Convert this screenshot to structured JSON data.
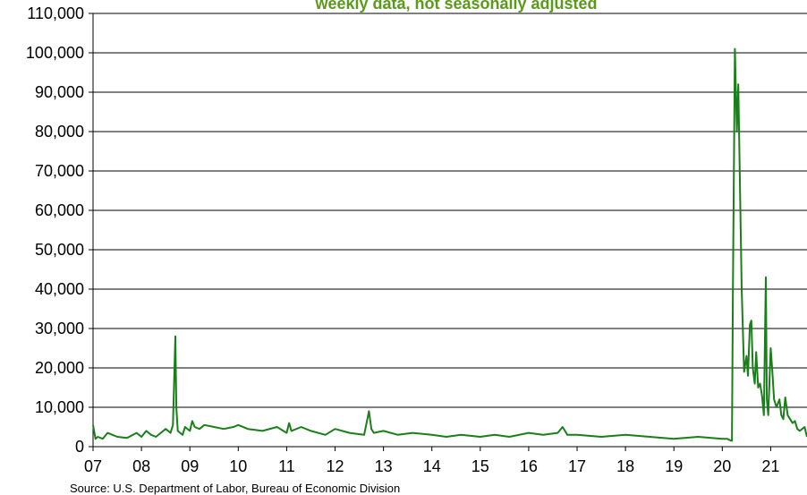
{
  "subtitle": "weekly data, not seasonally adjusted",
  "source": "Source: U.S. Department of Labor, Bureau of Economic Division",
  "colors": {
    "line": "#1a7f1a",
    "subtitle": "#5a9a1a",
    "grid": "#000000",
    "axis": "#000000"
  },
  "chart_data": {
    "type": "line",
    "title": "",
    "subtitle": "weekly data, not seasonally adjusted",
    "xlabel": "",
    "ylabel": "",
    "ylim": [
      0,
      110000
    ],
    "xlim": [
      2007.0,
      2021.75
    ],
    "yticks": [
      0,
      10000,
      20000,
      30000,
      40000,
      50000,
      60000,
      70000,
      80000,
      90000,
      100000,
      110000
    ],
    "ytick_labels": [
      "0",
      "10,000",
      "20,000",
      "30,000",
      "40,000",
      "50,000",
      "60,000",
      "70,000",
      "80,000",
      "90,000",
      "100,000",
      "110,000"
    ],
    "xticks": [
      2007,
      2008,
      2009,
      2010,
      2011,
      2012,
      2013,
      2014,
      2015,
      2016,
      2017,
      2018,
      2019,
      2020,
      2021
    ],
    "xtick_labels": [
      "07",
      "08",
      "09",
      "10",
      "11",
      "12",
      "13",
      "14",
      "15",
      "16",
      "17",
      "18",
      "19",
      "20",
      "21"
    ],
    "grid": "horizontal",
    "legend": "none",
    "series": [
      {
        "x": [
          2007.0,
          2007.05,
          2007.1,
          2007.2,
          2007.3,
          2007.5,
          2007.7,
          2007.9,
          2008.0,
          2008.1,
          2008.2,
          2008.3,
          2008.4,
          2008.5,
          2008.6,
          2008.65,
          2008.7,
          2008.72,
          2008.75,
          2008.8,
          2008.85,
          2008.9,
          2009.0,
          2009.05,
          2009.1,
          2009.2,
          2009.3,
          2009.5,
          2009.7,
          2009.9,
          2010.0,
          2010.2,
          2010.5,
          2010.8,
          2011.0,
          2011.05,
          2011.1,
          2011.3,
          2011.5,
          2011.8,
          2012.0,
          2012.3,
          2012.6,
          2012.7,
          2012.75,
          2012.8,
          2013.0,
          2013.3,
          2013.6,
          2014.0,
          2014.3,
          2014.6,
          2015.0,
          2015.3,
          2015.6,
          2016.0,
          2016.3,
          2016.6,
          2016.7,
          2016.8,
          2017.0,
          2017.5,
          2018.0,
          2018.5,
          2019.0,
          2019.5,
          2020.0,
          2020.1,
          2020.18,
          2020.2,
          2020.22,
          2020.26,
          2020.3,
          2020.33,
          2020.36,
          2020.4,
          2020.45,
          2020.5,
          2020.53,
          2020.57,
          2020.6,
          2020.63,
          2020.67,
          2020.7,
          2020.74,
          2020.78,
          2020.82,
          2020.86,
          2020.9,
          2020.92,
          2020.95,
          2021.0,
          2021.03,
          2021.07,
          2021.12,
          2021.18,
          2021.22,
          2021.26,
          2021.3,
          2021.35,
          2021.4,
          2021.45,
          2021.5,
          2021.55,
          2021.6,
          2021.65,
          2021.7,
          2021.75
        ],
        "y": [
          5500,
          2000,
          2500,
          2000,
          3500,
          2500,
          2200,
          3500,
          2500,
          4000,
          3000,
          2500,
          3500,
          4500,
          3500,
          5500,
          28000,
          10000,
          4000,
          3500,
          3000,
          5000,
          4000,
          6500,
          5000,
          4500,
          5500,
          5000,
          4500,
          5000,
          5500,
          4500,
          4000,
          5000,
          3500,
          6000,
          4000,
          5000,
          4000,
          3000,
          4500,
          3500,
          3000,
          9000,
          4500,
          3500,
          4000,
          3000,
          3500,
          3000,
          2500,
          3000,
          2500,
          3000,
          2500,
          3500,
          3000,
          3500,
          5000,
          3000,
          3000,
          2500,
          3000,
          2500,
          2000,
          2500,
          2000,
          2000,
          1500,
          1500,
          40000,
          101000,
          80000,
          92000,
          70000,
          40000,
          19000,
          23000,
          18000,
          31000,
          32000,
          20000,
          16000,
          24000,
          15000,
          16000,
          13000,
          8000,
          43000,
          12000,
          8000,
          25000,
          20000,
          12000,
          10000,
          12000,
          8000,
          7000,
          12500,
          8000,
          7000,
          6000,
          6500,
          4500,
          4000,
          4500,
          5000,
          2500
        ]
      }
    ]
  }
}
